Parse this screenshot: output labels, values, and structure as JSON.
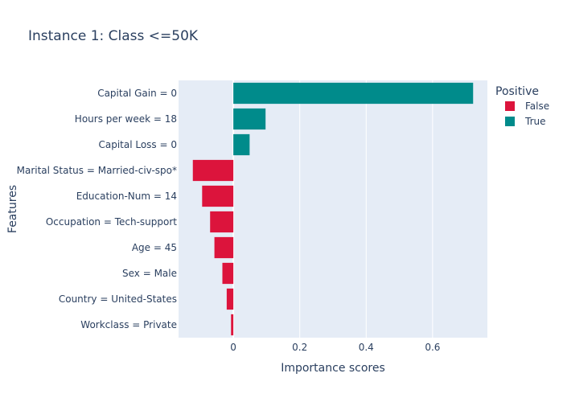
{
  "chart_data": {
    "type": "bar",
    "orientation": "horizontal",
    "title": "Instance 1: Class <=50K",
    "xlabel": "Importance scores",
    "ylabel": "Features",
    "xlim": [
      -0.165,
      0.765
    ],
    "xticks": [
      0,
      0.2,
      0.4,
      0.6
    ],
    "xtick_labels": [
      "0",
      "0.2",
      "0.4",
      "0.6"
    ],
    "grid": true,
    "plot_background": "#e5ecf6",
    "legend": {
      "title": "Positive",
      "placement": "top-right",
      "entries": [
        {
          "name": "False",
          "color": "#dc143c"
        },
        {
          "name": "True",
          "color": "#008b8b"
        }
      ]
    },
    "categories": [
      "Capital Gain = 0",
      "Hours per week = 18",
      "Capital Loss = 0",
      "Marital Status = Married-civ-spo*",
      "Education-Num = 14",
      "Occupation = Tech-support",
      "Age = 45",
      "Sex = Male",
      "Country = United-States",
      "Workclass = Private"
    ],
    "values": [
      0.722,
      0.097,
      0.049,
      -0.122,
      -0.094,
      -0.07,
      -0.057,
      -0.033,
      -0.02,
      -0.007
    ],
    "positive": [
      true,
      true,
      true,
      false,
      false,
      false,
      false,
      false,
      false,
      false
    ]
  }
}
